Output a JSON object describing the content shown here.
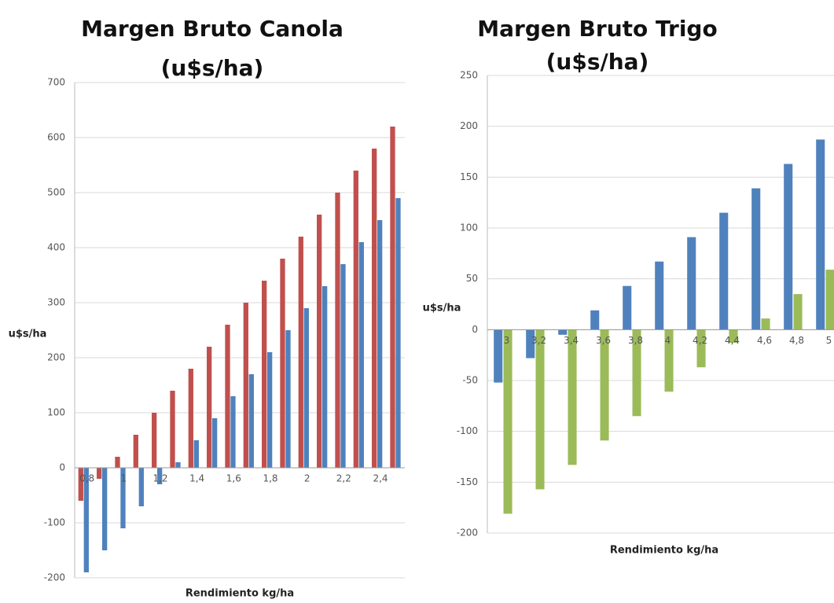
{
  "chart_data": [
    {
      "type": "bar",
      "title": [
        "Margen Bruto Canola",
        "(u$s/ha)"
      ],
      "x_label": "Rendimiento kg/ha",
      "y_label": "u$s/ha",
      "categories": [
        "0,8",
        null,
        "1",
        null,
        "1,2",
        null,
        "1,4",
        null,
        "1,6",
        null,
        "1,8",
        null,
        "2",
        null,
        "2,2",
        null,
        "2,4",
        null
      ],
      "series": [
        {
          "color": "#c0504d",
          "values": [
            -60,
            -20,
            20,
            60,
            100,
            140,
            180,
            220,
            260,
            300,
            340,
            380,
            420,
            460,
            500,
            540,
            580,
            620
          ]
        },
        {
          "color": "#4f81bd",
          "values": [
            -190,
            -150,
            -110,
            -70,
            -30,
            10,
            50,
            90,
            130,
            170,
            210,
            250,
            290,
            330,
            370,
            410,
            450,
            490
          ]
        }
      ],
      "ylim": [
        -200,
        700
      ],
      "yticks": [
        -200,
        -100,
        0,
        100,
        200,
        300,
        400,
        500,
        600,
        700
      ],
      "grid": true
    },
    {
      "type": "bar",
      "title": [
        "Margen Bruto Trigo",
        "(u$s/ha)"
      ],
      "x_label": "Rendimiento kg/ha",
      "y_label": "u$s/ha",
      "categories": [
        "3",
        "3,2",
        "3,4",
        "3,6",
        "3,8",
        "4",
        "4,2",
        "4,4",
        "4,6",
        "4,8",
        "5"
      ],
      "series": [
        {
          "color": "#4f81bd",
          "values": [
            -52,
            -28,
            -5,
            19,
            43,
            67,
            91,
            115,
            139,
            163,
            187
          ]
        },
        {
          "color": "#9bbb59",
          "values": [
            -181,
            -157,
            -133,
            -109,
            -85,
            -61,
            -37,
            -13,
            11,
            35,
            59
          ]
        }
      ],
      "ylim": [
        -200,
        250
      ],
      "yticks": [
        -200,
        -150,
        -100,
        -50,
        0,
        50,
        100,
        150,
        200,
        250
      ],
      "grid": true
    }
  ]
}
